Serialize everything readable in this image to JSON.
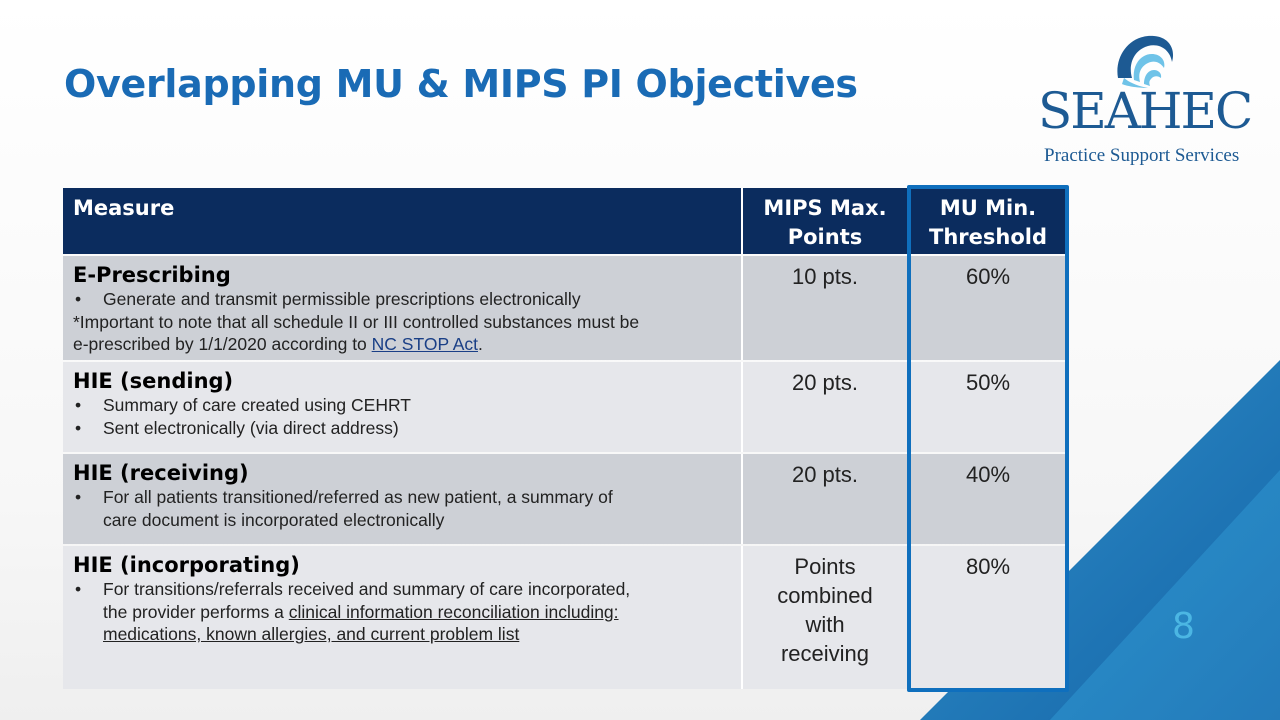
{
  "slide": {
    "title": "Overlapping MU & MIPS PI Objectives",
    "page_number": "8"
  },
  "logo": {
    "name": "SEAHEC",
    "tagline": "Practice Support Services"
  },
  "table": {
    "headers": {
      "measure": "Measure",
      "mips_line1": "MIPS Max.",
      "mips_line2": "Points",
      "mu_line1": "MU Min.",
      "mu_line2": "Threshold"
    },
    "rows": [
      {
        "name": "E-Prescribing",
        "bullet": "Generate and transmit permissible prescriptions electronically",
        "note_line1": "*Important to note that all schedule II or III controlled substances must be",
        "note_line2_pre": "e-prescribed by 1/1/2020 according to ",
        "note_link": "NC STOP Act",
        "note_line2_post": ".",
        "points": "10 pts.",
        "threshold": "60%"
      },
      {
        "name": "HIE (sending)",
        "bullet1": "Summary of care created using CEHRT",
        "bullet2": "Sent electronically (via direct address)",
        "points": "20 pts.",
        "threshold": "50%"
      },
      {
        "name": "HIE (receiving)",
        "bullet_line1": "For all patients transitioned/referred as new patient, a summary of",
        "bullet_line2": "care document is incorporated electronically",
        "points": "20 pts.",
        "threshold": "40%"
      },
      {
        "name": "HIE (incorporating)",
        "bullet_line1": "For transitions/referrals received and summary of care incorporated,",
        "bullet_line2_pre": "the provider performs a ",
        "bullet_line2_underlined": "clinical information reconciliation including:",
        "bullet_line3_underlined": "medications, known allergies, and current problem list",
        "points_line1": "Points",
        "points_line2": "combined",
        "points_line3": "with",
        "points_line4": "receiving",
        "threshold": "80%"
      }
    ]
  },
  "colors": {
    "title": "#1a6bb5",
    "header_bg": "#0b2c5e",
    "row_dark": "#cdd0d6",
    "row_light": "#e6e7eb",
    "highlight_border": "#0f6fbd",
    "page_number": "#4bb6e3"
  }
}
